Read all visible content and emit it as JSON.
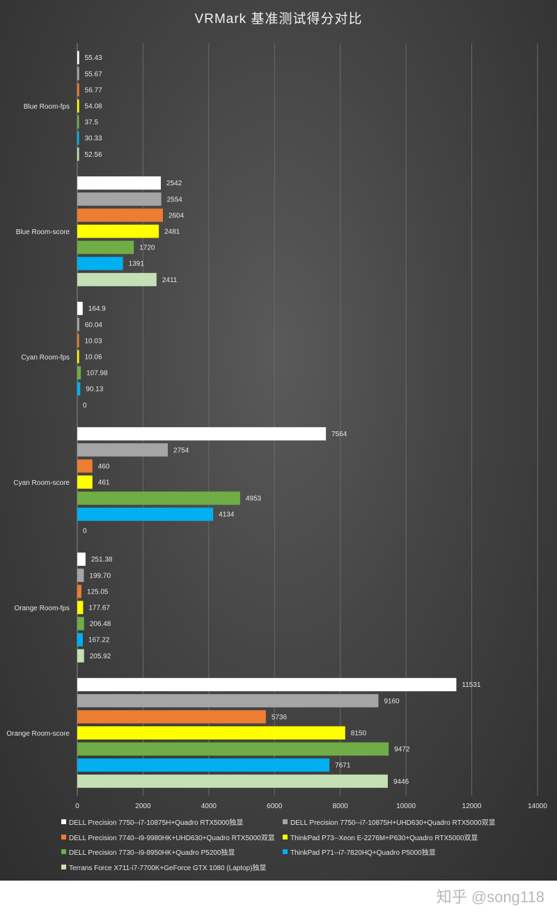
{
  "chart_data": {
    "type": "bar",
    "orientation": "horizontal",
    "title": "VRMark 基准测试得分对比",
    "categories": [
      "Blue Room-fps",
      "Blue Room-score",
      "Cyan Room-fps",
      "Cyan Room-score",
      "Orange Room-fps",
      "Orange Room-score"
    ],
    "x_ticks": [
      "0",
      "2000",
      "4000",
      "6000",
      "8000",
      "10000",
      "12000",
      "14000"
    ],
    "xlim": [
      0,
      14000
    ],
    "grid": "vertical",
    "legend_position": "bottom",
    "series": [
      {
        "name": "DELL Precision 7750--i7-10875H+Quadro RTX5000独显",
        "color": "#ffffff",
        "values": [
          55.43,
          2542,
          164.9,
          7564,
          251.38,
          11531
        ],
        "labels": [
          "55.43",
          "2542",
          "164.9",
          "7564",
          "251.38",
          "11531"
        ]
      },
      {
        "name": "DELL Precision 7750--i7-10875H+UHD630+Quadro RTX5000双显",
        "color": "#a5a5a5",
        "values": [
          55.67,
          2554,
          60.04,
          2754,
          199.7,
          9160
        ],
        "labels": [
          "55.67",
          "2554",
          "60.04",
          "2754",
          "199.70",
          "9160"
        ]
      },
      {
        "name": "DELL Precision 7740--i9-9980HK+UHD630+Quadro RTX5000双显",
        "color": "#ed7d31",
        "values": [
          56.77,
          2604,
          10.03,
          460,
          125.05,
          5736
        ],
        "labels": [
          "56.77",
          "2604",
          "10.03",
          "460",
          "125.05",
          "5736"
        ]
      },
      {
        "name": "ThinkPad P73--Xeon E-2276M+P630+Quadro RTX5000双显",
        "color": "#ffff00",
        "values": [
          54.08,
          2481,
          10.06,
          461,
          177.67,
          8150
        ],
        "labels": [
          "54.08",
          "2481",
          "10.06",
          "461",
          "177.67",
          "8150"
        ]
      },
      {
        "name": "DELL Precision 7730--i9-8950HK+Quadro P5200独显",
        "color": "#70ad47",
        "values": [
          37.5,
          1720,
          107.98,
          4953,
          206.48,
          9472
        ],
        "labels": [
          "37.5",
          "1720",
          "107.98",
          "4953",
          "206.48",
          "9472"
        ]
      },
      {
        "name": "ThinkPad P71--i7-7820HQ+Quadro P5000独显",
        "color": "#00b0f0",
        "values": [
          30.33,
          1391,
          90.13,
          4134,
          167.22,
          7671
        ],
        "labels": [
          "30.33",
          "1391",
          "90.13",
          "4134",
          "167.22",
          "7671"
        ]
      },
      {
        "name": "Terrans Force X711-i7-7700K+GeForce GTX 1080 (Laptop)独显",
        "color": "#c5e0b4",
        "values": [
          52.56,
          2411,
          0,
          0,
          205.92,
          9446
        ],
        "labels": [
          "52.56",
          "2411",
          "0",
          "0",
          "205.92",
          "9446"
        ]
      }
    ]
  },
  "watermark": "知乎 @song118"
}
